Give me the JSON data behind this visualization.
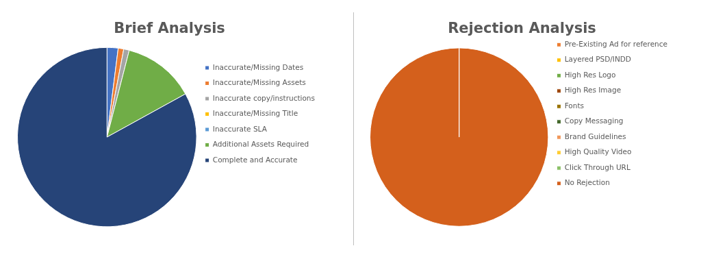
{
  "chart_data": [
    {
      "type": "pie",
      "title": "Brief Analysis",
      "categories": [
        "Inaccurate/Missing Dates",
        "Inaccurate/Missing Assets",
        "Inaccurate copy/instructions",
        "Inaccurate/Missing Title",
        "Inaccurate SLA",
        "Additional Assets Required",
        "Complete and Accurate"
      ],
      "values": [
        2,
        1,
        1,
        0,
        0,
        13,
        83
      ],
      "colors": [
        "#4472c4",
        "#ed7d31",
        "#a5a5a5",
        "#ffc000",
        "#5b9bd5",
        "#70ad47",
        "#264478"
      ],
      "legend": "right"
    },
    {
      "type": "pie",
      "title": "Rejection Analysis",
      "categories": [
        "Pre-Existing Ad for reference",
        "Layered PSD/INDD",
        "High Res Logo",
        "High Res Image",
        "Fonts",
        "Copy Messaging",
        "Brand Guidelines",
        "High Quality Video",
        "Click Through URL",
        "No Rejection"
      ],
      "values": [
        0,
        0,
        0,
        0,
        0,
        0,
        0,
        0,
        0,
        100
      ],
      "colors": [
        "#ed7d31",
        "#ffc000",
        "#70ad47",
        "#9e480e",
        "#997300",
        "#43682b",
        "#f1975a",
        "#ffcd33",
        "#8cc168",
        "#d4601c"
      ],
      "legend": "right"
    }
  ]
}
